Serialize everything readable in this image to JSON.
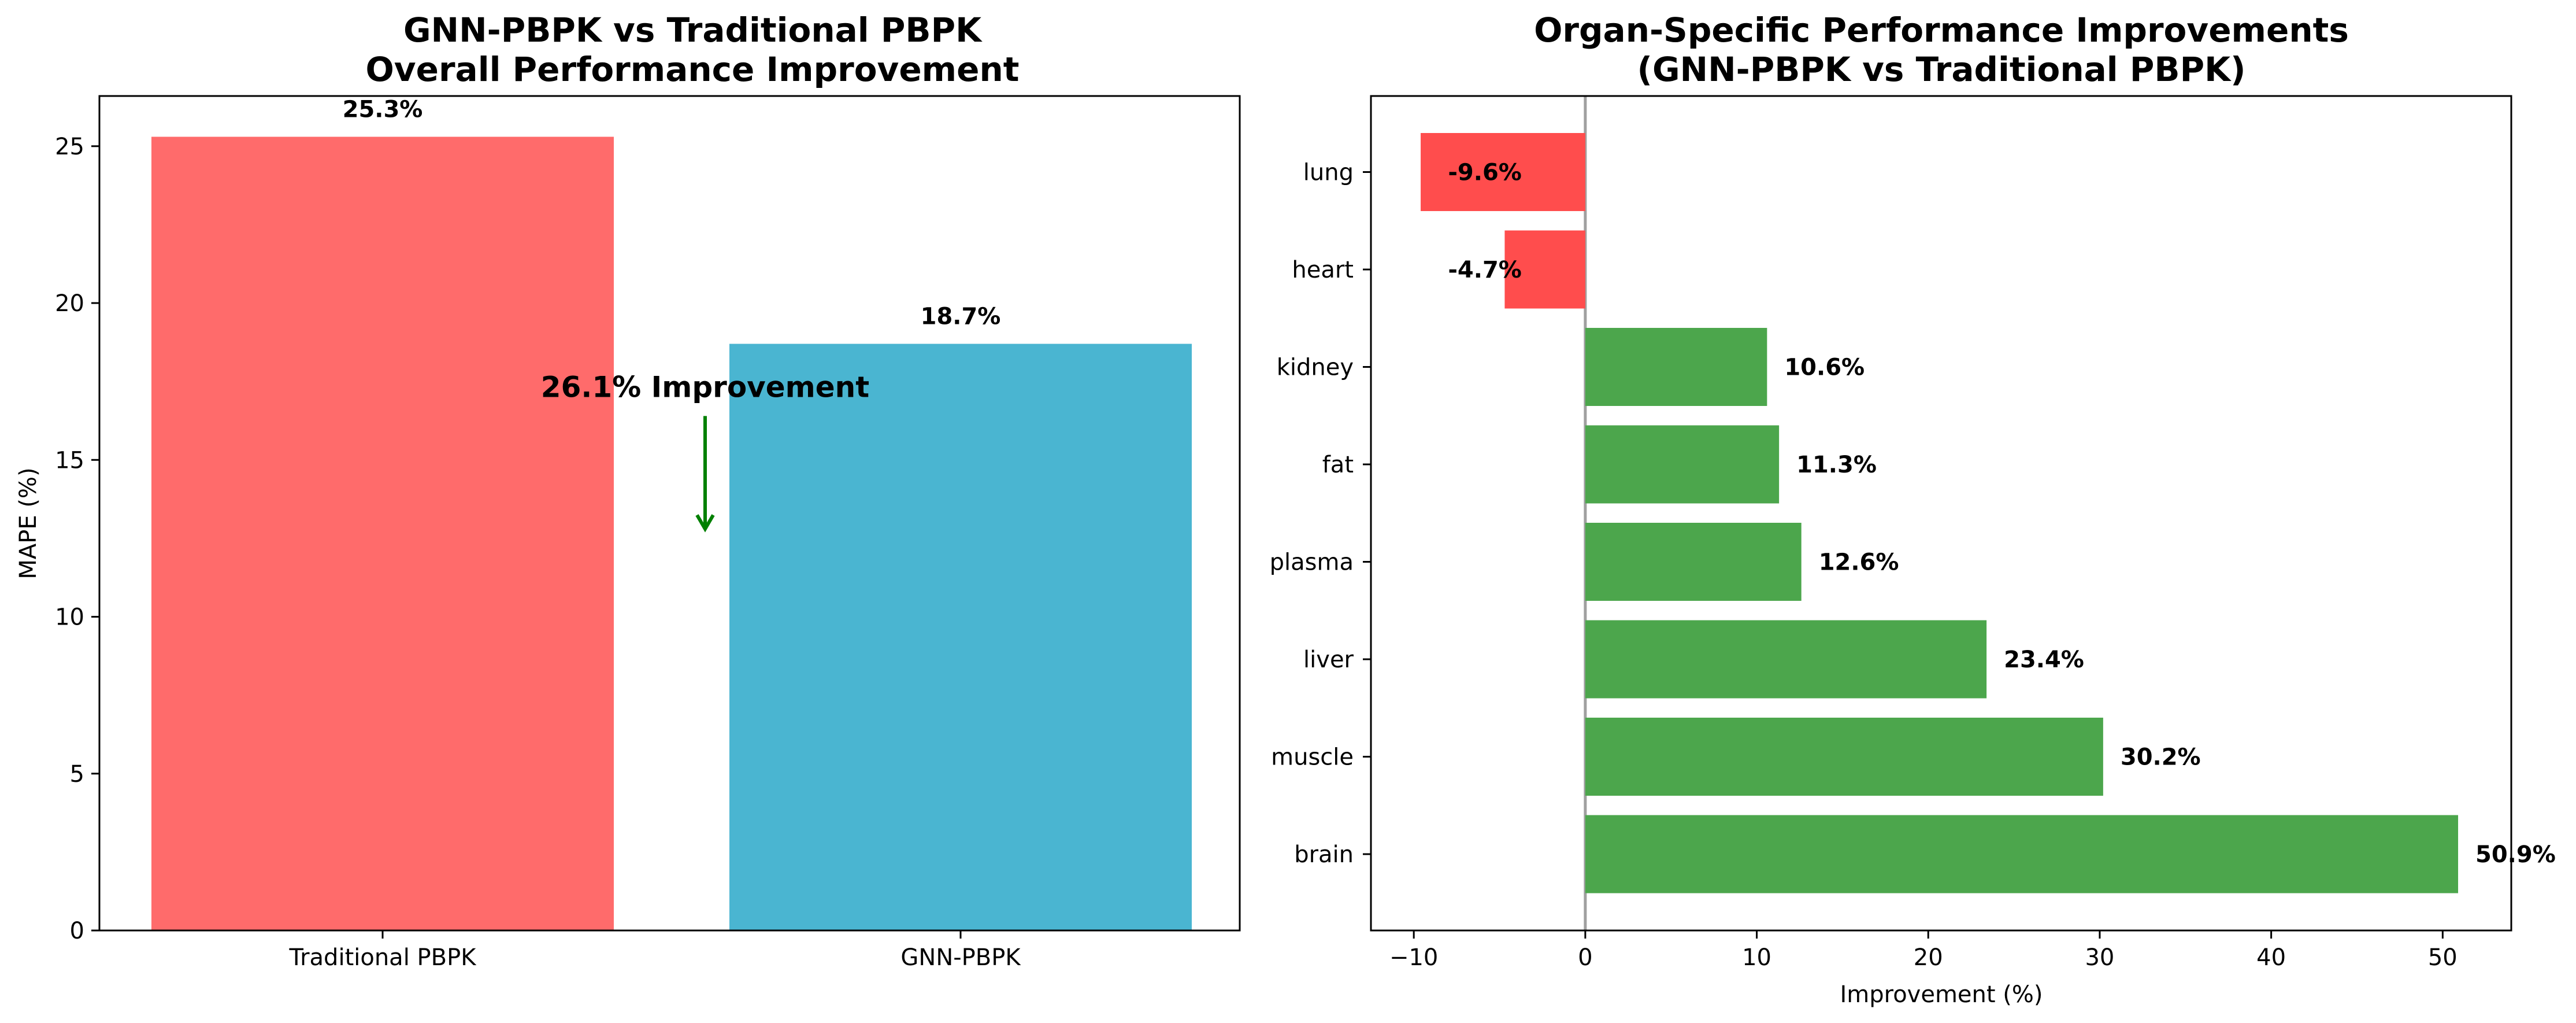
{
  "chart_data": [
    {
      "type": "bar",
      "title": "GNN-PBPK vs Traditional PBPK\nOverall Performance Improvement",
      "xlabel": "",
      "ylabel": "MAPE (%)",
      "categories": [
        "Traditional PBPK",
        "GNN-PBPK"
      ],
      "values": [
        25.3,
        18.7
      ],
      "value_labels": [
        "25.3%",
        "18.7%"
      ],
      "colors": [
        "#ff6b6b",
        "#4ab5d1"
      ],
      "ylim": [
        0,
        26.6
      ],
      "yticks": [
        0,
        5,
        10,
        15,
        20,
        25
      ],
      "annotation": {
        "text": "26.1% Improvement",
        "arrow_from": 17.1,
        "arrow_to": 12.8,
        "color": "#008000"
      },
      "grid": false
    },
    {
      "type": "bar",
      "orientation": "horizontal",
      "title": "Organ-Specific Performance Improvements\n(GNN-PBPK vs Traditional PBPK)",
      "xlabel": "Improvement (%)",
      "ylabel": "",
      "categories": [
        "brain",
        "muscle",
        "liver",
        "plasma",
        "fat",
        "kidney",
        "heart",
        "lung"
      ],
      "values": [
        50.9,
        30.2,
        23.4,
        12.6,
        11.3,
        10.6,
        -4.7,
        -9.6
      ],
      "value_labels": [
        "50.9%",
        "30.2%",
        "23.4%",
        "12.6%",
        "11.3%",
        "10.6%",
        "-4.7%",
        "-9.6%"
      ],
      "positive_color": "#4ca64c",
      "negative_color": "#ff4d4d",
      "xlim": [
        -12.5,
        54
      ],
      "xticks": [
        -10,
        0,
        10,
        20,
        30,
        40,
        50
      ],
      "zero_line_color": "#a0a0a0",
      "grid": false
    }
  ]
}
